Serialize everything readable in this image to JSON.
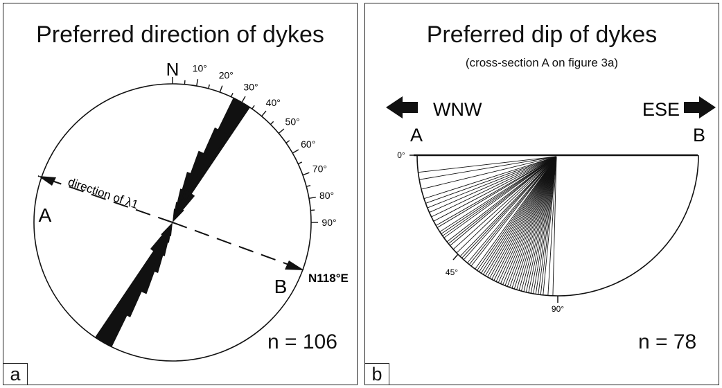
{
  "panel_a": {
    "letter": "a",
    "title": "Preferred direction of dykes",
    "north": "N",
    "tick_labels": [
      "10°",
      "20°",
      "30°",
      "40°",
      "50°",
      "60°",
      "70°",
      "80°",
      "90°"
    ],
    "arrow_caption": "direction of λ1",
    "point_a": "A",
    "point_b": "B",
    "b_direction": "N118°E",
    "count": "n = 106"
  },
  "panel_b": {
    "letter": "b",
    "title": "Preferred dip of dykes",
    "subtitle": "(cross-section A on figure 3a)",
    "west_label": "WNW",
    "east_label": "ESE",
    "point_a": "A",
    "point_b": "B",
    "angle_labels": [
      "0°",
      "45°",
      "90°"
    ],
    "count": "n = 78"
  },
  "rose": {
    "petals": [
      {
        "angle": 30,
        "r": 1.0
      },
      {
        "angle": 28,
        "r": 0.75
      },
      {
        "angle": 24,
        "r": 0.55
      },
      {
        "angle": 20,
        "r": 0.38
      },
      {
        "angle": 17,
        "r": 0.25
      },
      {
        "angle": 14,
        "r": 0.15
      },
      {
        "angle": 10,
        "r": 0.1
      },
      {
        "angle": 36,
        "r": 0.25
      },
      {
        "angle": 40,
        "r": 0.12
      }
    ]
  },
  "dips": [
    7,
    10,
    14,
    18,
    20,
    22,
    24,
    26,
    28,
    30,
    31,
    33,
    34,
    35,
    36,
    38,
    39,
    40,
    42,
    44,
    46,
    47,
    48,
    50,
    51,
    52,
    54,
    55,
    56,
    57,
    58,
    59,
    60,
    61,
    62,
    63,
    64,
    65,
    66,
    67,
    68,
    69,
    70,
    71,
    72,
    73,
    74,
    75,
    76,
    77,
    78,
    79,
    80,
    81,
    82,
    83,
    84,
    86,
    88
  ]
}
